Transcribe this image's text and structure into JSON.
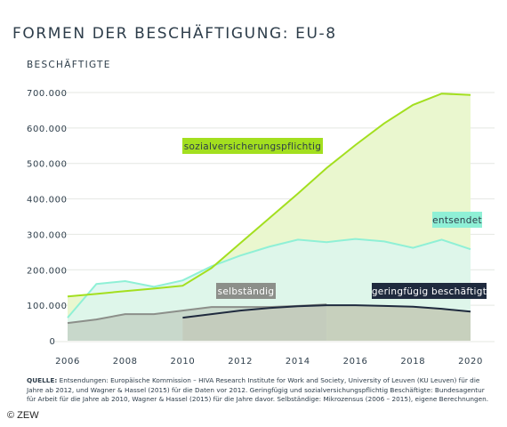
{
  "title": "FORMEN DER BESCHÄFTIGUNG: EU-8",
  "source_prefix": "QUELLE:",
  "source_text": " Entsendungen: Europäische Kommission – HIVA Research Institute for Work and Society, University of Leuven (KU Leuven) für die Jahre ab 2012, und Wagner & Hassel (2015) für die Daten vor 2012. Geringfügig und sozialversichungspflichtig Beschäftigte: Bundesagentur für Arbeit für die Jahre ab 2010, Wagner & Hassel (2015) für die Jahre davor. Selbständige: Mikrozensus (2006 – 2015), eigene Berechnungen.",
  "copyright": "© ZEW",
  "chart_data": {
    "type": "area",
    "title": "FORMEN DER BESCHÄFTIGUNG: EU-8",
    "ylabel": "BESCHÄFTIGTE",
    "xlabel": "",
    "xlim": [
      2006,
      2020
    ],
    "ylim": [
      0,
      700000
    ],
    "x_ticks": [
      2006,
      2008,
      2010,
      2012,
      2014,
      2016,
      2018,
      2020
    ],
    "y_ticks": [
      0,
      100000,
      200000,
      300000,
      400000,
      500000,
      600000,
      700000
    ],
    "y_tick_labels": [
      "0",
      "100.000",
      "200.000",
      "300.000",
      "400.000",
      "500.000",
      "600.000",
      "700.000"
    ],
    "grid": true,
    "series": [
      {
        "name": "sozialversicherungspflichtig",
        "color": "#a3df1f",
        "fill": "#eaf7cf",
        "x": [
          2006,
          2007,
          2008,
          2009,
          2010,
          2011,
          2012,
          2013,
          2014,
          2015,
          2016,
          2017,
          2018,
          2019,
          2020
        ],
        "values": [
          125000,
          132000,
          140000,
          147000,
          155000,
          205000,
          275000,
          345000,
          415000,
          487000,
          552000,
          613000,
          665000,
          697000,
          693000
        ]
      },
      {
        "name": "entsendet",
        "color": "#8ff0d6",
        "fill": "#dcf6ef",
        "x": [
          2006,
          2007,
          2008,
          2009,
          2010,
          2011,
          2012,
          2013,
          2014,
          2015,
          2016,
          2017,
          2018,
          2019,
          2020
        ],
        "values": [
          65000,
          160000,
          168000,
          152000,
          170000,
          210000,
          240000,
          265000,
          285000,
          278000,
          287000,
          280000,
          262000,
          285000,
          258000
        ]
      },
      {
        "name": "selbständig",
        "color": "#8c8f8a",
        "fill": "#b7c0b0",
        "x": [
          2006,
          2007,
          2008,
          2009,
          2010,
          2011,
          2012,
          2013,
          2014,
          2015
        ],
        "values": [
          50000,
          60000,
          75000,
          75000,
          85000,
          95000,
          95000,
          95000,
          98000,
          102000
        ]
      },
      {
        "name": "geringfügig beschäftigt",
        "color": "#1f2a3e",
        "fill": "#d5dccc",
        "x": [
          2010,
          2011,
          2012,
          2013,
          2014,
          2015,
          2016,
          2017,
          2018,
          2019,
          2020
        ],
        "values": [
          65000,
          75000,
          85000,
          92000,
          97000,
          100000,
          100000,
          98000,
          96000,
          90000,
          82000
        ]
      }
    ],
    "labels": {
      "sozialversicherungspflichtig": {
        "bg": "#a3df1f",
        "fg": "#2d3d4a"
      },
      "entsendet": {
        "bg": "#8ff0d6",
        "fg": "#2d3d4a"
      },
      "selbständig": {
        "bg": "#8c8f8a",
        "fg": "#ffffff"
      },
      "geringfügig beschäftigt": {
        "bg": "#1f2a3e",
        "fg": "#ffffff"
      }
    }
  }
}
